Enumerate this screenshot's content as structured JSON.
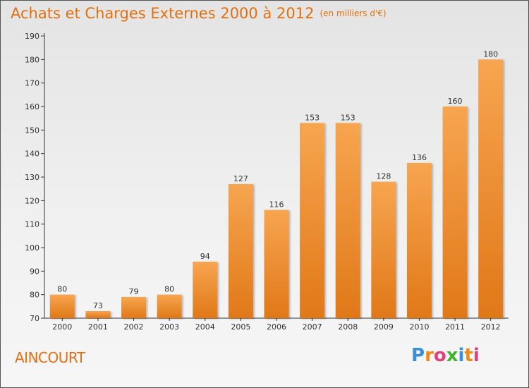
{
  "header": {
    "title": "Achats et Charges Externes 2000 à 2012",
    "unit": "(en milliers d'€)"
  },
  "footer": {
    "commune": "AINCOURT",
    "brand": "Proxiti"
  },
  "colors": {
    "bar_top": "#f7a550",
    "bar_bottom": "#e07818",
    "accent": "#e07010",
    "brand_letters": [
      "#3a8fd8",
      "#f08a18",
      "#e04080",
      "#44b030",
      "#3a8fd8",
      "#f08a18",
      "#e04080"
    ]
  },
  "chart_data": {
    "type": "bar",
    "title": "Achats et Charges Externes 2000 à 2012",
    "subtitle": "(en milliers d'€)",
    "xlabel": "",
    "ylabel": "",
    "categories": [
      "2000",
      "2001",
      "2002",
      "2003",
      "2004",
      "2005",
      "2006",
      "2007",
      "2008",
      "2009",
      "2010",
      "2011",
      "2012"
    ],
    "values": [
      80,
      73,
      79,
      80,
      94,
      127,
      116,
      153,
      153,
      128,
      136,
      160,
      180
    ],
    "ylim": [
      70,
      190
    ],
    "yticks": [
      70,
      80,
      90,
      100,
      110,
      120,
      130,
      140,
      150,
      160,
      170,
      180,
      190
    ],
    "grid": false,
    "legend": "none"
  }
}
